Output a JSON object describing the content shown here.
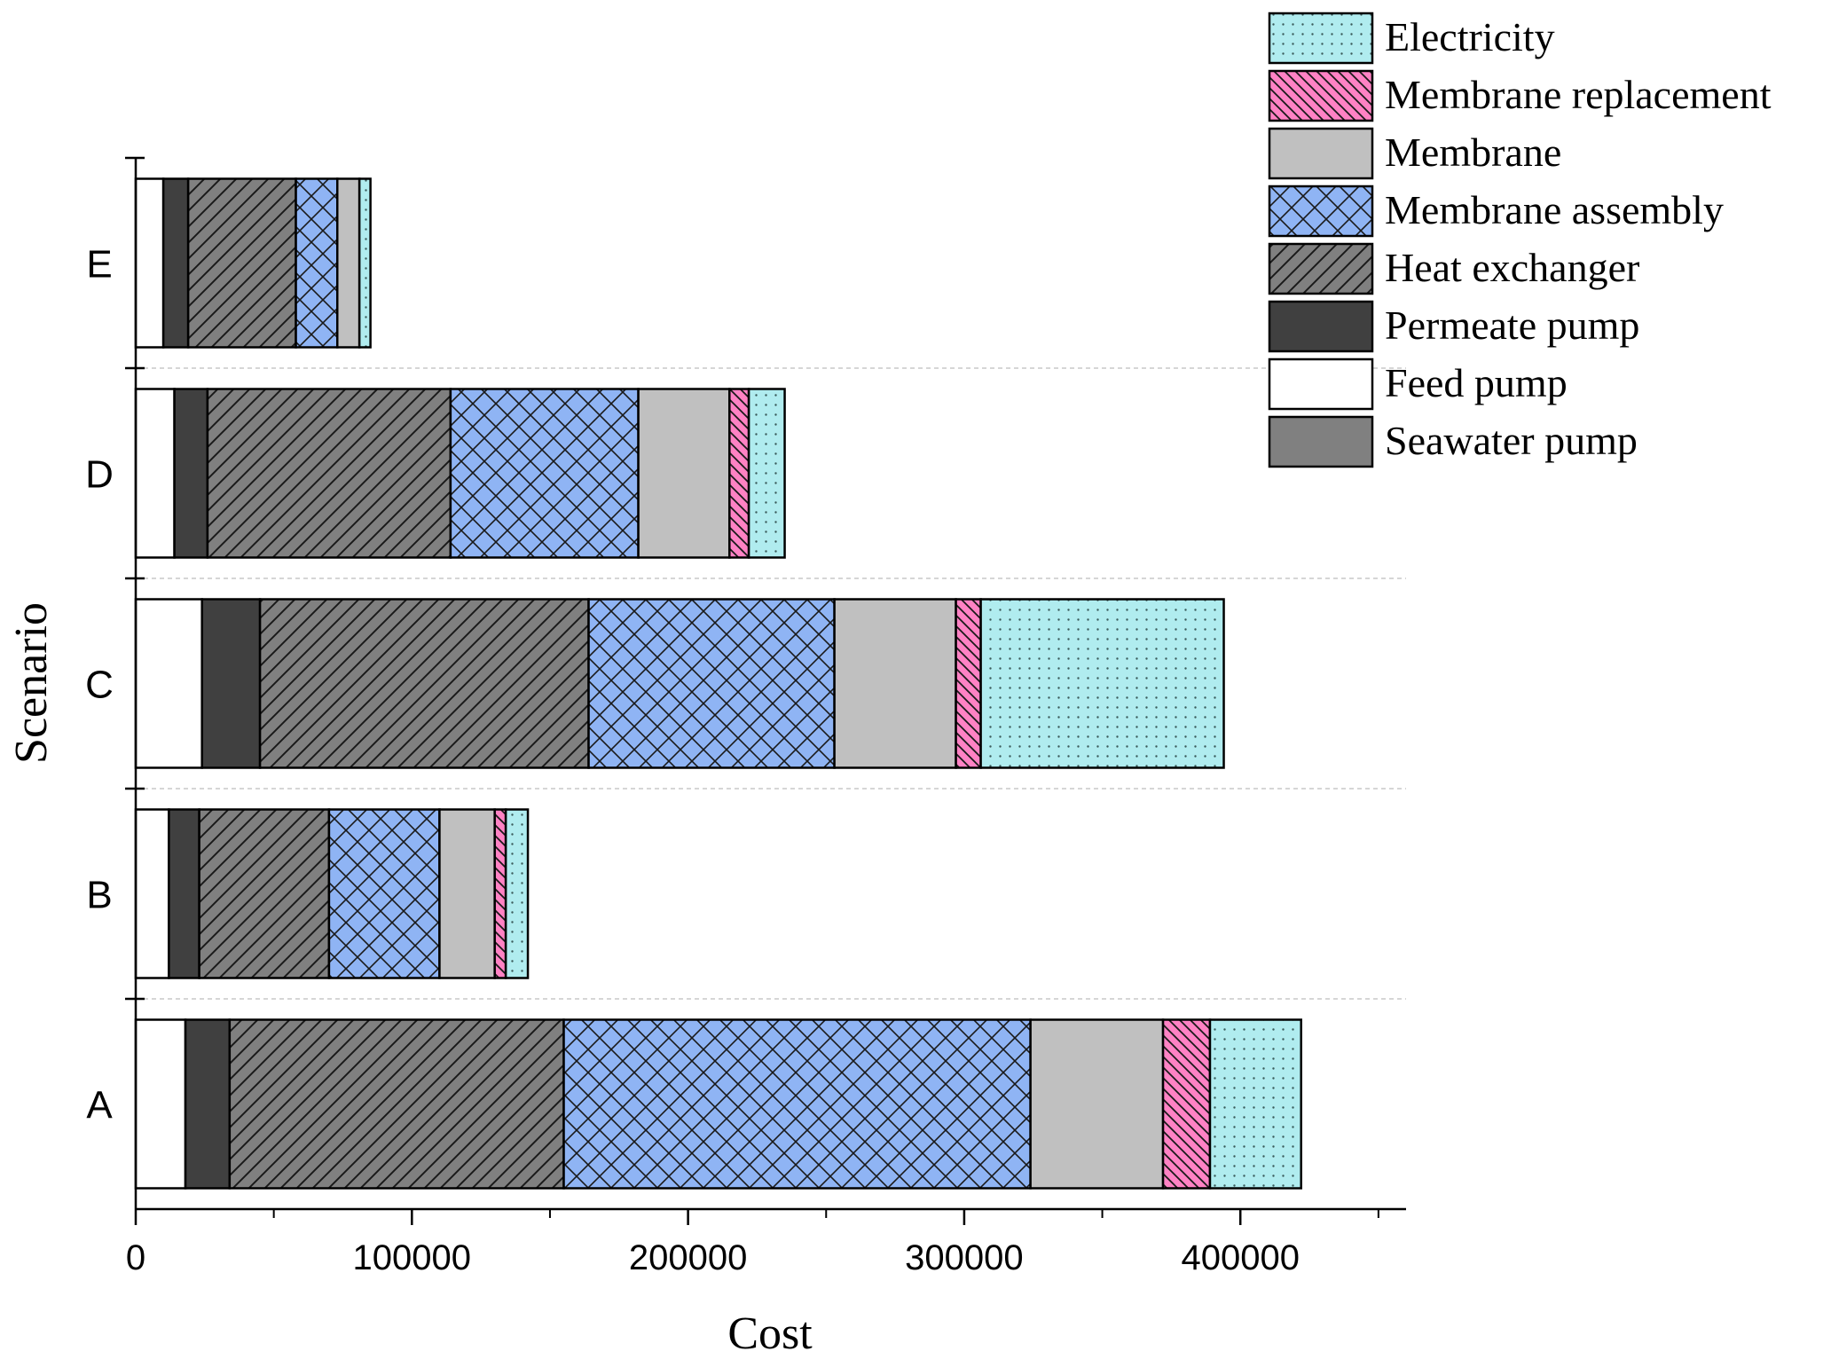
{
  "chart_data": {
    "type": "bar",
    "orientation": "horizontal",
    "stacked": true,
    "title": "",
    "xlabel": "Cost",
    "ylabel": "Scenario",
    "xlim": [
      0,
      460000
    ],
    "xticks": [
      0,
      100000,
      200000,
      300000,
      400000
    ],
    "xtick_labels": [
      "0",
      "100000",
      "200000",
      "300000",
      "400000"
    ],
    "categories": [
      "A",
      "B",
      "C",
      "D",
      "E"
    ],
    "grid": "dashed separators between categories",
    "legend_position": "top-right",
    "series": [
      {
        "name": "Seawater pump",
        "values": [
          0,
          0,
          0,
          0,
          0
        ],
        "color": "#808080",
        "pattern": "solid"
      },
      {
        "name": "Feed pump",
        "values": [
          18000,
          12000,
          24000,
          14000,
          10000
        ],
        "color": "#ffffff",
        "pattern": "solid"
      },
      {
        "name": "Permeate pump",
        "values": [
          16000,
          11000,
          21000,
          12000,
          9000
        ],
        "color": "#404040",
        "pattern": "solid"
      },
      {
        "name": "Heat exchanger",
        "values": [
          121000,
          47000,
          119000,
          88000,
          39000
        ],
        "color": "#808080",
        "pattern": "diagonal"
      },
      {
        "name": "Membrane assembly",
        "values": [
          169000,
          40000,
          89000,
          68000,
          15000
        ],
        "color": "#8fb4f4",
        "pattern": "crosshatch"
      },
      {
        "name": "Membrane",
        "values": [
          48000,
          20000,
          44000,
          33000,
          8000
        ],
        "color": "#c0c0c0",
        "pattern": "solid"
      },
      {
        "name": "Membrane replacement",
        "values": [
          17000,
          4000,
          9000,
          7000,
          0
        ],
        "color": "#ff82c4",
        "pattern": "backslash"
      },
      {
        "name": "Electricity",
        "values": [
          33000,
          8000,
          88000,
          13000,
          4000
        ],
        "color": "#b0ecef",
        "pattern": "dots"
      }
    ],
    "legend_order": [
      "Electricity",
      "Membrane replacement",
      "Membrane",
      "Membrane assembly",
      "Heat exchanger",
      "Permeate pump",
      "Feed pump",
      "Seawater pump"
    ]
  }
}
